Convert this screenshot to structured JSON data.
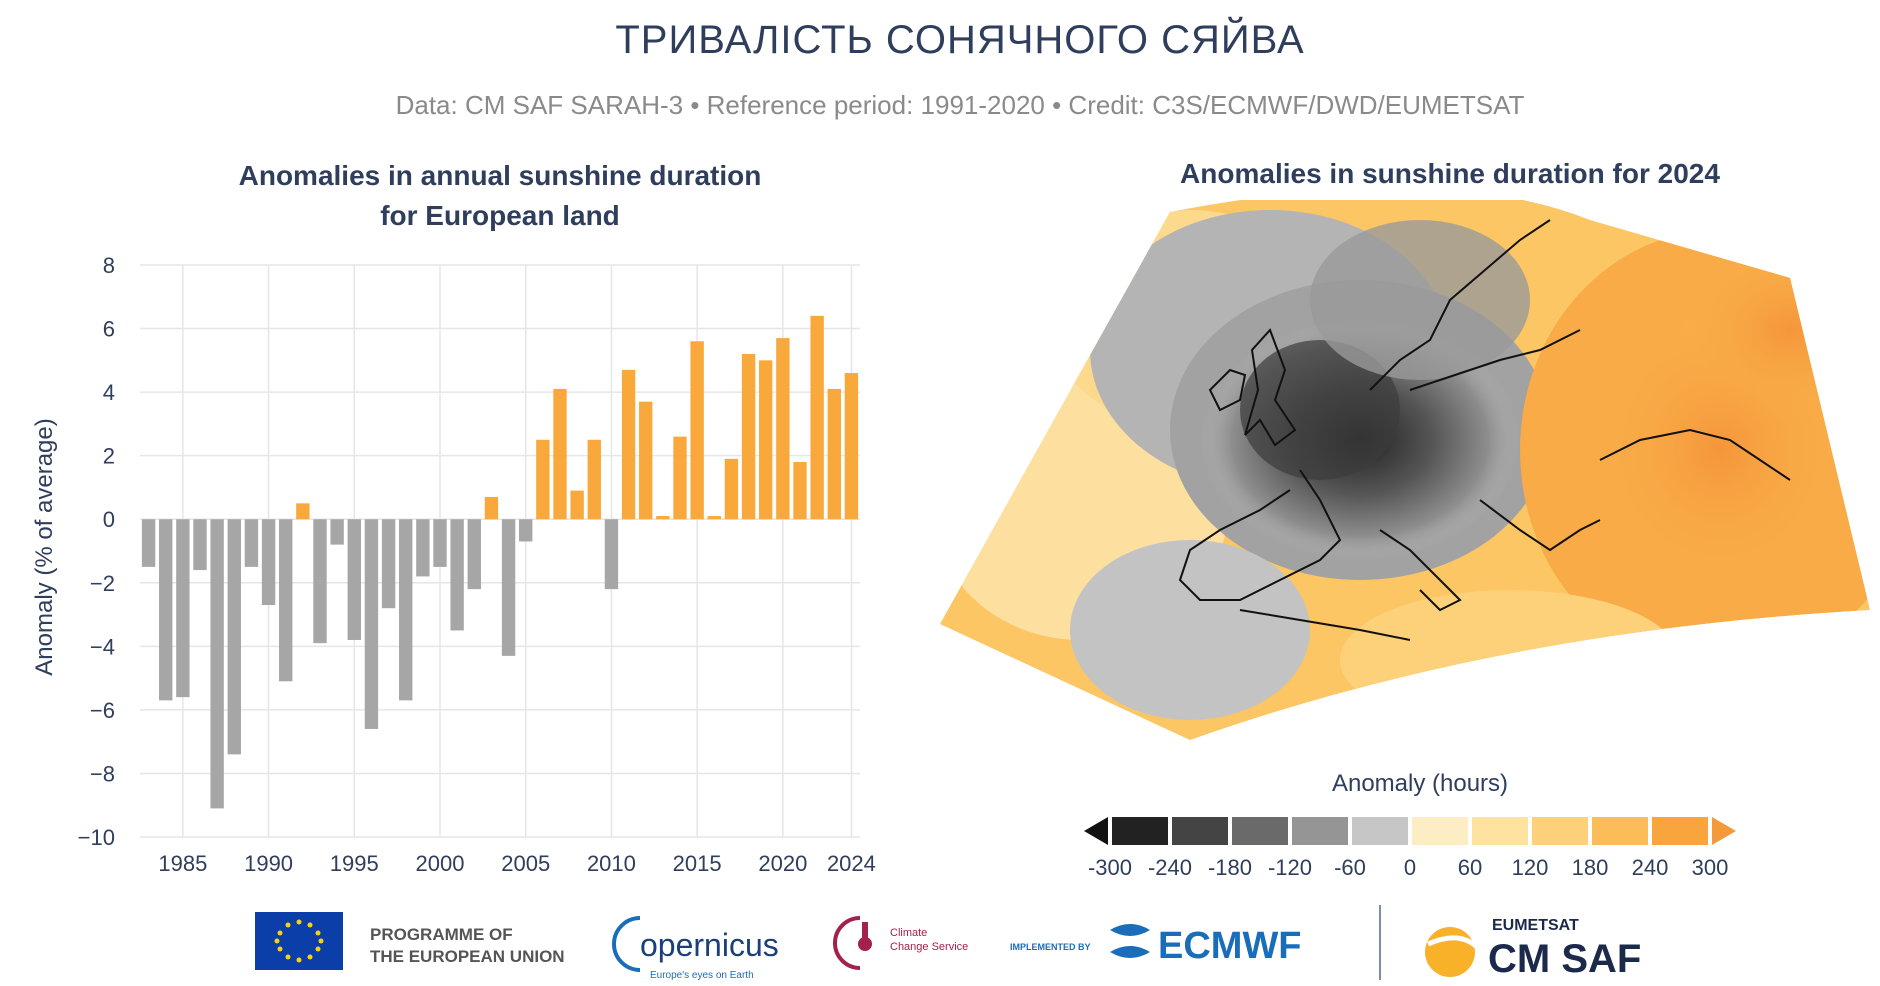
{
  "header": {
    "title": "ТРИВАЛІСТЬ СОНЯЧНОГО СЯЙВА",
    "subtitle": "Data: CM SAF SARAH-3 • Reference period: 1991-2020 • Credit: C3S/ECMWF/DWD/EUMETSAT"
  },
  "bar_panel": {
    "title_line1": "Anomalies in annual sunshine duration",
    "title_line2": "for European land"
  },
  "map_panel": {
    "title": "Anomalies in sunshine duration for 2024",
    "colorbar_label": "Anomaly (hours)",
    "colorbar_ticks": [
      "-300",
      "-240",
      "-180",
      "-120",
      "-60",
      "0",
      "60",
      "120",
      "180",
      "240",
      "300"
    ],
    "colorbar_colors": [
      "#222222",
      "#444444",
      "#6a6a6a",
      "#959595",
      "#c6c6c6",
      "#fdedc4",
      "#fde2a0",
      "#fdd17a",
      "#fbbd57",
      "#f8a53e"
    ],
    "colorbar_min_arrow_color": "#111111",
    "colorbar_max_arrow_color": "#f59a3a"
  },
  "colors": {
    "positive": "#f9a83c",
    "negative": "#a6a6a6",
    "title_navy": "#2f3e5c"
  },
  "chart_data": [
    {
      "type": "bar",
      "title": "Anomalies in annual sunshine duration for European land",
      "xlabel": "",
      "ylabel": "Anomaly (% of average)",
      "ylim": [
        -10,
        8
      ],
      "yticks": [
        8,
        6,
        4,
        2,
        0,
        -2,
        -4,
        -6,
        -8,
        -10
      ],
      "xticks": [
        1985,
        1990,
        1995,
        2000,
        2005,
        2010,
        2015,
        2020,
        2024
      ],
      "grid": true,
      "categories": [
        1983,
        1984,
        1985,
        1986,
        1987,
        1988,
        1989,
        1990,
        1991,
        1992,
        1993,
        1994,
        1995,
        1996,
        1997,
        1998,
        1999,
        2000,
        2001,
        2002,
        2003,
        2004,
        2005,
        2006,
        2007,
        2008,
        2009,
        2010,
        2011,
        2012,
        2013,
        2014,
        2015,
        2016,
        2017,
        2018,
        2019,
        2020,
        2021,
        2022,
        2023,
        2024
      ],
      "values": [
        -1.5,
        -5.7,
        -5.6,
        -1.6,
        -9.1,
        -7.4,
        -1.5,
        -2.7,
        -5.1,
        0.5,
        -3.9,
        -0.8,
        -3.8,
        -6.6,
        -2.8,
        -5.7,
        -1.8,
        -1.5,
        -3.5,
        -2.2,
        0.7,
        -4.3,
        -0.7,
        2.5,
        4.1,
        0.9,
        2.5,
        -2.2,
        4.7,
        3.7,
        0.1,
        2.6,
        5.6,
        0.1,
        1.9,
        5.2,
        5.0,
        5.7,
        1.8,
        6.4,
        4.1,
        4.6
      ]
    }
  ],
  "footer": {
    "eu_label_line1": "PROGRAMME OF",
    "eu_label_line2": "THE EUROPEAN UNION",
    "copernicus": "opernicus",
    "copernicus_tag": "Europe's eyes on Earth",
    "climate_line1": "Climate",
    "climate_line2": "Change Service",
    "implemented_by": "IMPLEMENTED BY",
    "ecmwf": "ECMWF",
    "eumetsat": "EUMETSAT",
    "cmsaf": "CM SAF"
  }
}
